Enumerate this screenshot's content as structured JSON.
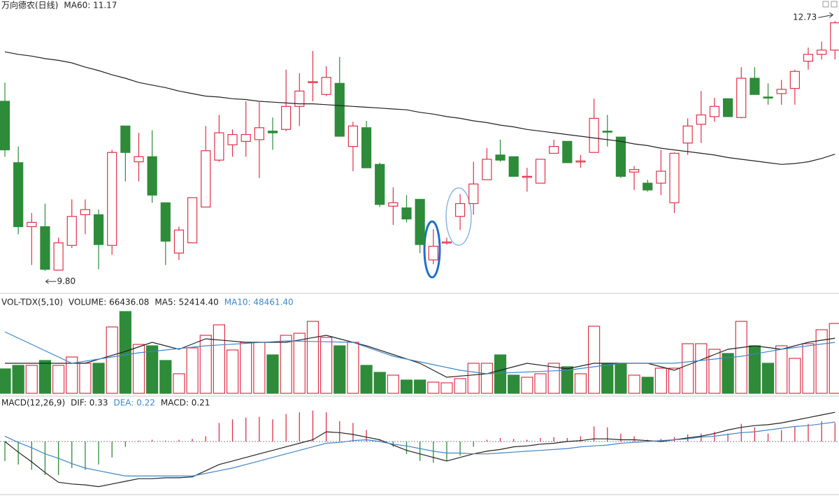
{
  "chart_data": [
    {
      "type": "candlestick",
      "title": "万向德农(日线)",
      "up_color": "#e0304a",
      "down_color": "#2e8b3a",
      "ylim": [
        9.66,
        12.83
      ],
      "open": [
        11.79,
        11.07,
        10.32,
        10.32,
        9.81,
        10.1,
        10.46,
        10.46,
        10.1,
        11.5,
        11.08,
        11.14,
        10.6,
        10.01,
        10.13,
        10.55,
        11.1,
        11.28,
        11.32,
        11.34,
        11.44,
        11.46,
        11.73,
        12.01,
        11.87,
        12.0,
        11.26,
        11.48,
        11.05,
        10.56,
        10.54,
        10.64,
        9.93,
        10.13,
        10.44,
        10.59,
        10.87,
        11.16,
        11.14,
        10.9,
        10.83,
        11.18,
        11.32,
        11.08,
        11.19,
        11.44,
        11.37,
        10.96,
        10.83,
        10.83,
        10.6,
        11.3,
        11.52,
        11.61,
        11.82,
        11.6,
        12.06,
        11.84,
        11.88,
        11.94,
        12.26,
        12.34,
        12.39
      ],
      "high": [
        12.01,
        11.26,
        10.48,
        10.59,
        10.19,
        10.64,
        10.64,
        10.52,
        11.22,
        11.5,
        11.42,
        11.45,
        10.6,
        10.32,
        10.66,
        11.5,
        11.63,
        11.46,
        11.79,
        11.78,
        11.6,
        12.16,
        12.12,
        12.38,
        12.2,
        12.31,
        11.55,
        11.56,
        11.07,
        10.78,
        10.69,
        10.64,
        10.29,
        10.19,
        10.7,
        11.08,
        11.24,
        11.34,
        11.14,
        11.01,
        11.11,
        11.34,
        11.32,
        11.16,
        11.82,
        11.63,
        11.37,
        11.03,
        10.87,
        11.22,
        11.19,
        11.59,
        11.91,
        11.83,
        11.82,
        12.19,
        12.19,
        12.0,
        12.04,
        12.16,
        12.42,
        12.49,
        12.73
      ],
      "low": [
        11.14,
        10.23,
        9.87,
        9.8,
        9.82,
        10.07,
        10.23,
        9.82,
        9.99,
        10.85,
        10.85,
        10.6,
        9.87,
        9.93,
        10.13,
        10.55,
        11.08,
        11.14,
        11.14,
        10.89,
        11.22,
        11.44,
        11.5,
        11.79,
        11.85,
        11.38,
        10.97,
        11.01,
        10.55,
        10.34,
        10.37,
        10.01,
        9.88,
        10.11,
        10.28,
        10.46,
        10.87,
        11.08,
        10.91,
        10.73,
        10.83,
        11.18,
        11.07,
        11.01,
        11.19,
        11.26,
        10.89,
        10.75,
        10.73,
        10.69,
        10.48,
        11.16,
        11.3,
        11.55,
        11.61,
        11.59,
        11.87,
        11.75,
        11.75,
        11.75,
        12.16,
        12.28,
        12.28
      ],
      "close": [
        11.22,
        10.32,
        10.37,
        9.82,
        10.13,
        10.44,
        10.52,
        10.11,
        11.19,
        11.19,
        11.14,
        10.69,
        10.15,
        10.28,
        10.66,
        11.21,
        11.42,
        11.4,
        11.4,
        11.48,
        11.42,
        11.73,
        11.91,
        12.02,
        12.07,
        11.38,
        11.5,
        11.01,
        10.58,
        10.6,
        10.41,
        10.11,
        10.09,
        10.14,
        10.59,
        10.82,
        11.11,
        11.1,
        10.91,
        10.91,
        11.11,
        11.26,
        11.07,
        11.09,
        11.59,
        11.43,
        10.91,
        10.99,
        10.75,
        10.97,
        11.18,
        11.5,
        11.63,
        11.73,
        11.61,
        12.06,
        11.87,
        11.83,
        11.93,
        12.14,
        12.34,
        12.39,
        12.71
      ],
      "series": [
        {
          "name": "MA60: 11.17",
          "color": "#222222",
          "values": [
            12.37,
            12.34,
            12.32,
            12.29,
            12.27,
            12.24,
            12.19,
            12.15,
            12.1,
            12.06,
            12.01,
            11.98,
            11.95,
            11.91,
            11.88,
            11.85,
            11.84,
            11.82,
            11.81,
            11.79,
            11.78,
            11.77,
            11.76,
            11.76,
            11.75,
            11.74,
            11.73,
            11.72,
            11.71,
            11.7,
            11.69,
            11.66,
            11.64,
            11.61,
            11.59,
            11.56,
            11.54,
            11.51,
            11.49,
            11.46,
            11.44,
            11.42,
            11.4,
            11.38,
            11.36,
            11.34,
            11.32,
            11.29,
            11.27,
            11.24,
            11.22,
            11.2,
            11.18,
            11.16,
            11.13,
            11.11,
            11.09,
            11.07,
            11.05,
            11.06,
            11.08,
            11.12,
            11.17
          ]
        }
      ],
      "annotations": [
        12.73,
        {
          "value": 9.8,
          "label": "9.80"
        }
      ]
    },
    {
      "type": "volume",
      "title": "VOL-TDX(5,10)",
      "volume_label": "VOLUME: 66436.08",
      "ylim": [
        0,
        88360
      ],
      "values": [
        23250,
        26570,
        26570,
        31230,
        26570,
        34550,
        28570,
        28570,
        63120,
        77730,
        46510,
        45180,
        31230,
        18600,
        43180,
        55140,
        65110,
        41190,
        48500,
        48500,
        36540,
        55140,
        57140,
        68430,
        53150,
        45180,
        48500,
        26570,
        19930,
        17270,
        12620,
        12620,
        10630,
        9970,
        13950,
        28570,
        28570,
        36540,
        17270,
        15280,
        18600,
        28570,
        25250,
        18600,
        63780,
        28570,
        28570,
        17270,
        15280,
        23920,
        23920,
        47170,
        47170,
        41860,
        37870,
        68430,
        45180,
        28570,
        45180,
        33220,
        47170,
        60460,
        66436.08
      ],
      "series": [
        {
          "name": "MA5: 52414.40",
          "color": "#222222",
          "values": [
            28570,
            28570,
            28570,
            28570,
            28570,
            28570,
            28570,
            32330,
            36100,
            39860,
            44180,
            48500,
            45170,
            41850,
            46840,
            51820,
            50710,
            49610,
            48500,
            48500,
            48500,
            48500,
            50710,
            52930,
            55140,
            51820,
            48500,
            45180,
            41030,
            36870,
            32720,
            28570,
            21920,
            15280,
            16390,
            17490,
            18600,
            21920,
            25250,
            28570,
            26800,
            25020,
            23250,
            25910,
            28570,
            28570,
            28570,
            28570,
            28570,
            25250,
            21920,
            26910,
            31890,
            36880,
            41860,
            43520,
            45180,
            43520,
            41860,
            45180,
            48500,
            50460,
            52414.4
          ]
        },
        {
          "name": "MA10: 48461.40",
          "color": "#3f86c8",
          "values": [
            58460,
            52480,
            46500,
            40530,
            34550,
            28570,
            30560,
            32550,
            34550,
            36540,
            38530,
            39860,
            41190,
            42520,
            43850,
            45180,
            45960,
            46730,
            47510,
            48280,
            49060,
            49830,
            49560,
            49300,
            49030,
            48770,
            48500,
            44070,
            39640,
            35210,
            32550,
            29890,
            27240,
            24580,
            21920,
            20260,
            18600,
            19150,
            19710,
            20260,
            20810,
            21370,
            21920,
            23580,
            25250,
            26910,
            28570,
            28570,
            28570,
            28570,
            28570,
            29900,
            31230,
            32560,
            33880,
            35210,
            37430,
            39640,
            41860,
            43510,
            45160,
            46810,
            48461.4
          ]
        }
      ]
    },
    {
      "type": "macd",
      "title": "MACD(12,26,9)",
      "macd_label": "MACD: 0.21",
      "ylim": [
        -0.6,
        0.45
      ],
      "values": [
        -0.22,
        -0.26,
        -0.32,
        -0.38,
        -0.38,
        -0.3,
        -0.32,
        -0.26,
        -0.18,
        -0.06,
        0.01,
        0.02,
        0.01,
        0.02,
        0.03,
        0.06,
        0.21,
        0.25,
        0.27,
        0.28,
        0.25,
        0.31,
        0.33,
        0.35,
        0.33,
        0.23,
        0.21,
        0.13,
        0.02,
        -0.06,
        -0.14,
        -0.22,
        -0.24,
        -0.22,
        -0.16,
        -0.06,
        0.02,
        0.04,
        0.03,
        0.02,
        0.04,
        0.05,
        0.04,
        0.06,
        0.17,
        0.16,
        0.09,
        0.06,
        0.02,
        0.03,
        0.05,
        0.08,
        0.09,
        0.11,
        0.09,
        0.2,
        0.16,
        0.09,
        0.13,
        0.17,
        0.2,
        0.23,
        0.21
      ],
      "series": [
        {
          "name": "DIF: 0.33",
          "color": "#222222",
          "values": [
            0.0,
            -0.12,
            -0.23,
            -0.35,
            -0.46,
            -0.48,
            -0.49,
            -0.51,
            -0.48,
            -0.45,
            -0.42,
            -0.42,
            -0.41,
            -0.41,
            -0.4,
            -0.33,
            -0.26,
            -0.22,
            -0.18,
            -0.14,
            -0.1,
            -0.06,
            -0.02,
            0.02,
            0.11,
            0.1,
            0.08,
            0.05,
            0.02,
            -0.04,
            -0.1,
            -0.14,
            -0.18,
            -0.22,
            -0.18,
            -0.14,
            -0.11,
            -0.09,
            -0.06,
            -0.05,
            -0.03,
            -0.02,
            0.0,
            0.01,
            0.03,
            0.03,
            0.02,
            0.02,
            0.01,
            0.0,
            0.02,
            0.04,
            0.06,
            0.09,
            0.13,
            0.16,
            0.18,
            0.19,
            0.21,
            0.24,
            0.27,
            0.3,
            0.33
          ]
        },
        {
          "name": "DEA: 0.22",
          "color": "#3f86c8",
          "values": [
            0.06,
            -0.01,
            -0.07,
            -0.14,
            -0.19,
            -0.25,
            -0.3,
            -0.33,
            -0.36,
            -0.39,
            -0.39,
            -0.39,
            -0.39,
            -0.39,
            -0.39,
            -0.36,
            -0.33,
            -0.3,
            -0.26,
            -0.22,
            -0.18,
            -0.14,
            -0.1,
            -0.06,
            -0.02,
            -0.01,
            0.01,
            0.02,
            0.0,
            -0.03,
            -0.05,
            -0.08,
            -0.11,
            -0.13,
            -0.13,
            -0.14,
            -0.14,
            -0.13,
            -0.12,
            -0.11,
            -0.1,
            -0.09,
            -0.08,
            -0.06,
            -0.05,
            -0.04,
            -0.02,
            -0.01,
            0.0,
            0.01,
            0.02,
            0.03,
            0.05,
            0.06,
            0.08,
            0.1,
            0.11,
            0.13,
            0.15,
            0.17,
            0.18,
            0.2,
            0.22
          ]
        }
      ]
    }
  ]
}
